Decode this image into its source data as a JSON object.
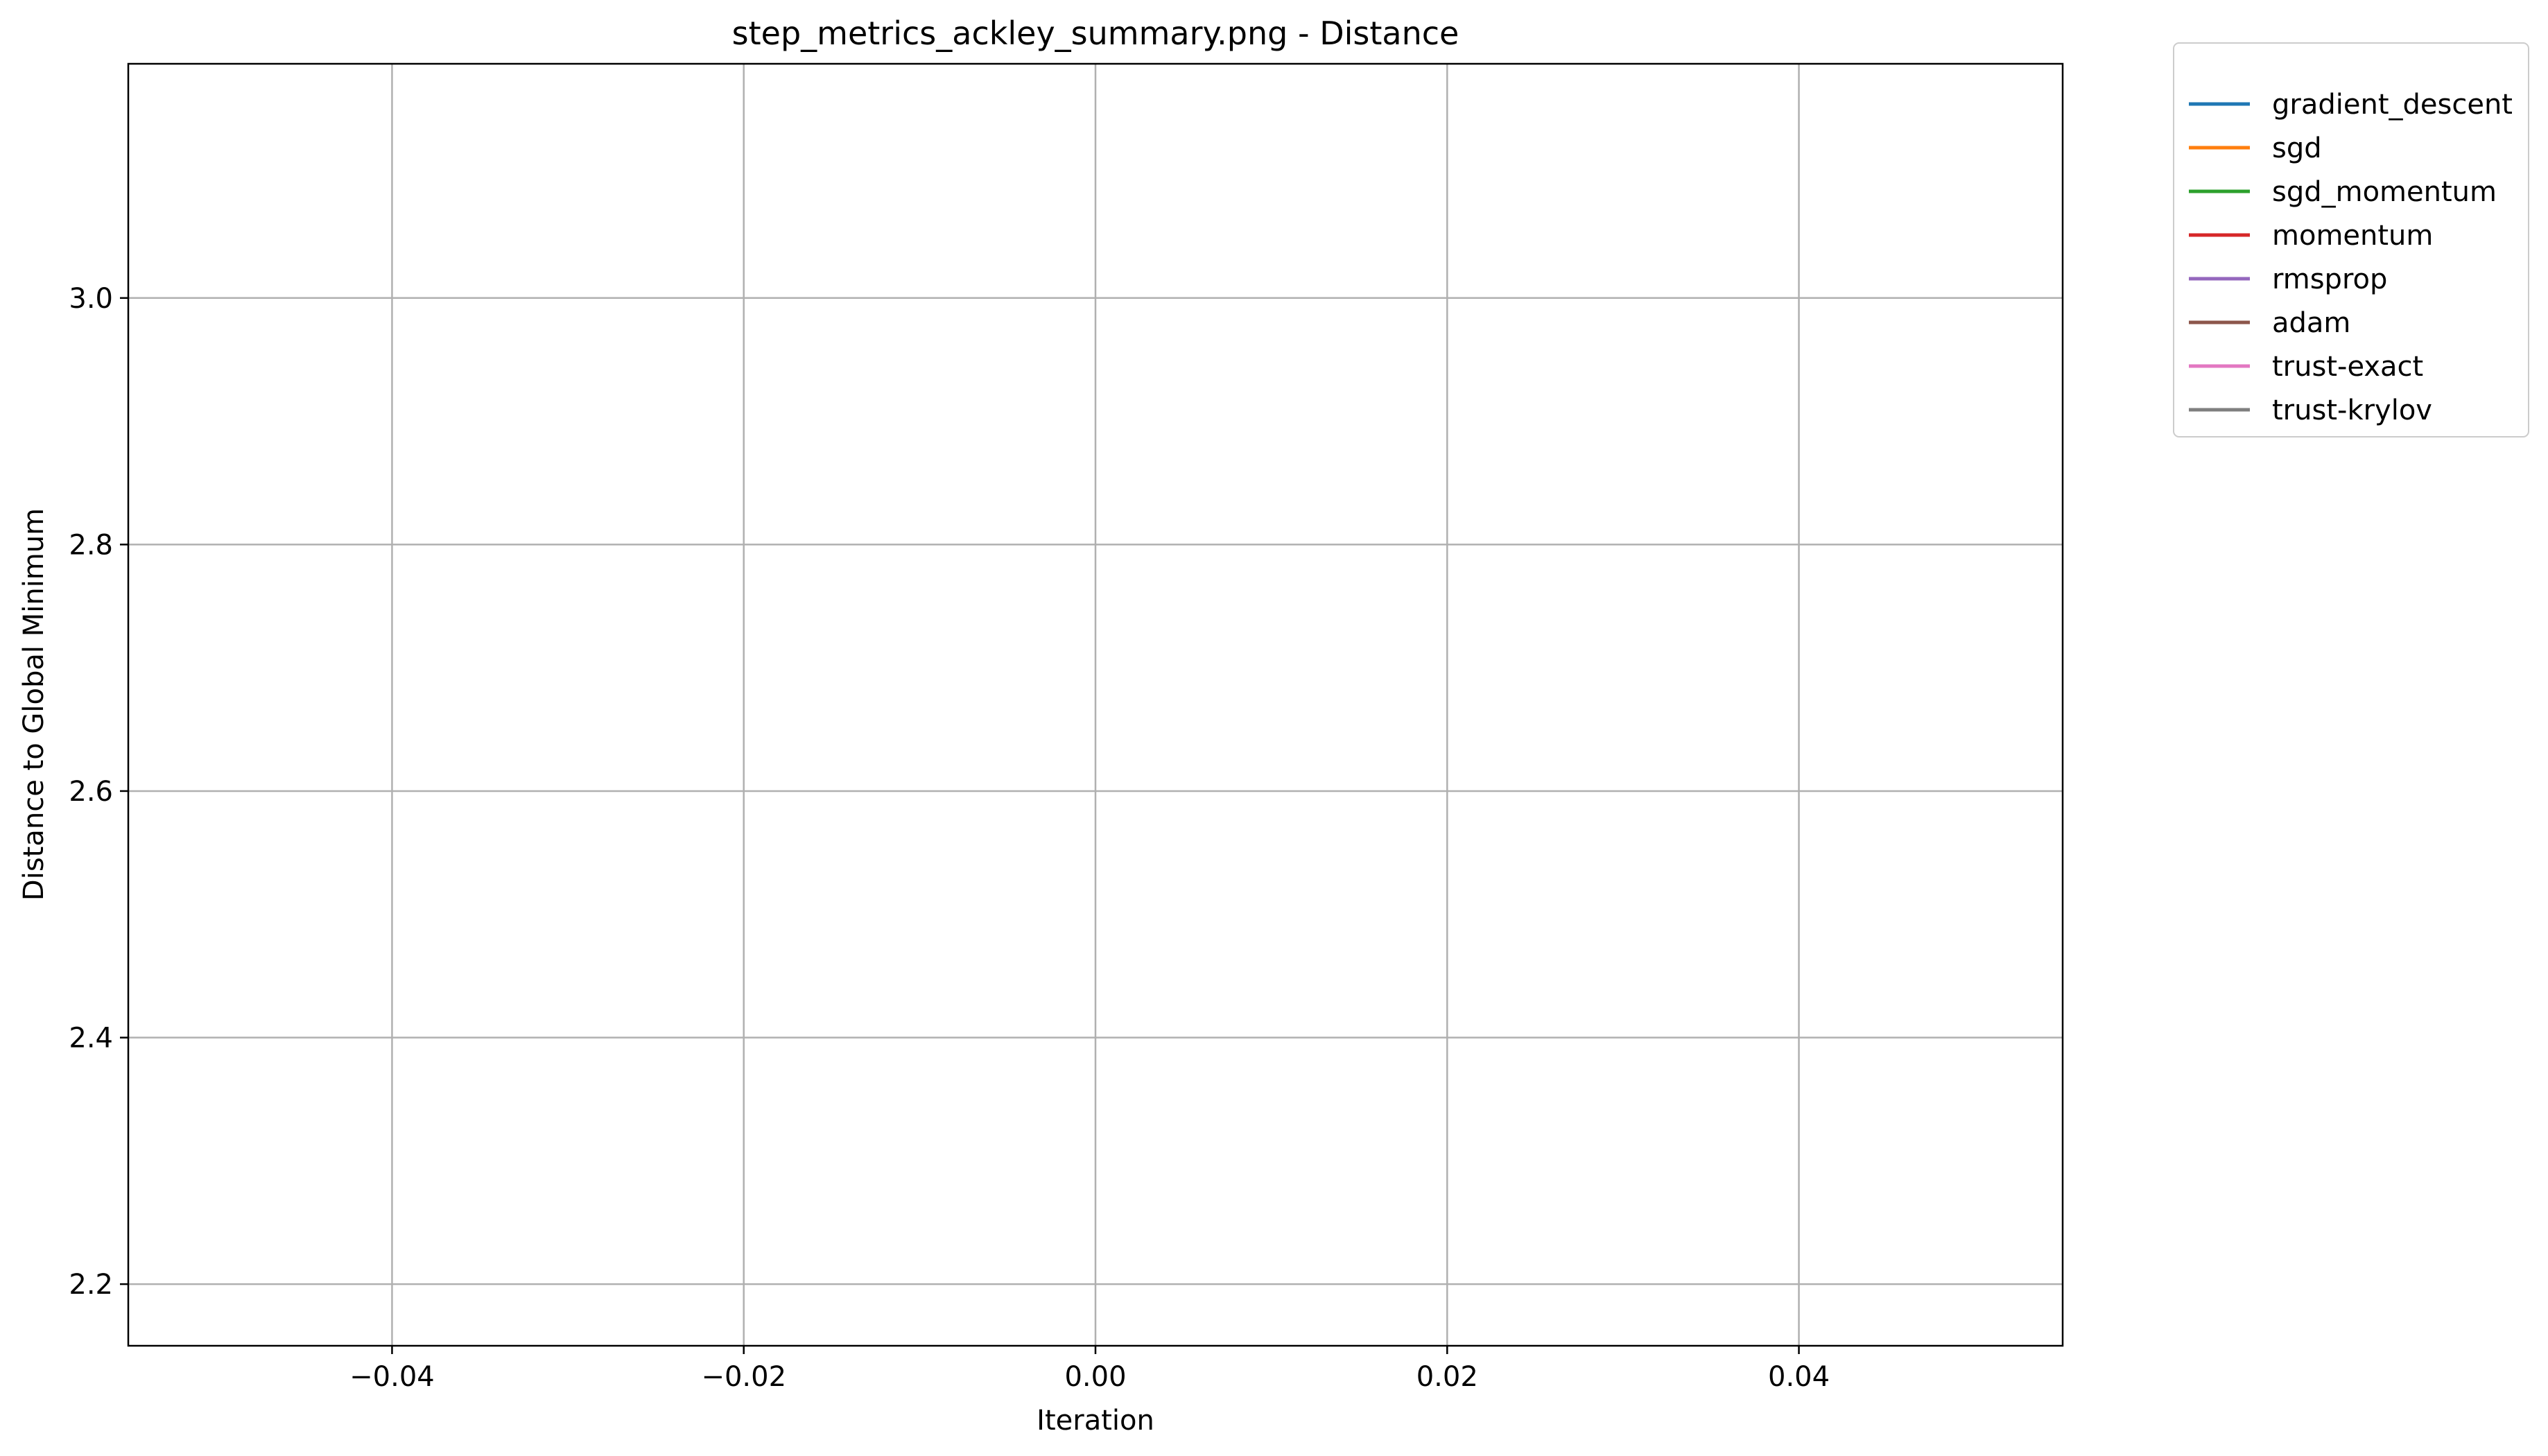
{
  "chart_data": {
    "type": "line",
    "title": "step_metrics_ackley_summary.png - Distance",
    "xlabel": "Iteration",
    "ylabel": "Distance to Global Minimum",
    "xlim": [
      -0.055,
      0.055
    ],
    "ylim": [
      2.15,
      3.19
    ],
    "x_ticks": [
      -0.04,
      -0.02,
      0.0,
      0.02,
      0.04
    ],
    "x_tick_labels": [
      "−0.04",
      "−0.02",
      "0.00",
      "0.02",
      "0.04"
    ],
    "y_ticks": [
      2.2,
      2.4,
      2.6,
      2.8,
      3.0
    ],
    "y_tick_labels": [
      "2.2",
      "2.4",
      "2.6",
      "2.8",
      "3.0"
    ],
    "grid": true,
    "legend_position": "outside-top-right",
    "series": [
      {
        "name": "gradient_descent",
        "color": "#1f77b4",
        "x": [],
        "y": []
      },
      {
        "name": "sgd",
        "color": "#ff7f0e",
        "x": [],
        "y": []
      },
      {
        "name": "sgd_momentum",
        "color": "#2ca02c",
        "x": [],
        "y": []
      },
      {
        "name": "momentum",
        "color": "#d62728",
        "x": [],
        "y": []
      },
      {
        "name": "rmsprop",
        "color": "#9467bd",
        "x": [],
        "y": []
      },
      {
        "name": "adam",
        "color": "#8c564b",
        "x": [],
        "y": []
      },
      {
        "name": "trust-exact",
        "color": "#e377c2",
        "x": [],
        "y": []
      },
      {
        "name": "trust-krylov",
        "color": "#7f7f7f",
        "x": [],
        "y": []
      }
    ]
  }
}
